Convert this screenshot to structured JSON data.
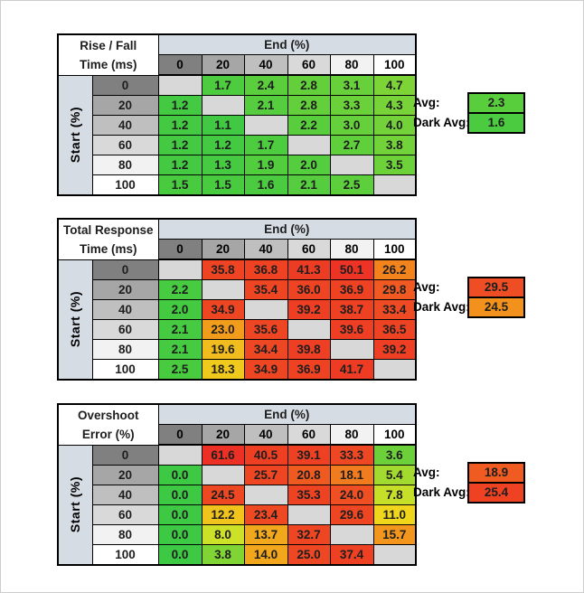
{
  "labels": {
    "end_header": "End (%)",
    "start_header": "Start (%)",
    "avg": "Avg:",
    "dark_avg": "Dark Avg:"
  },
  "palette": {
    "header_blue": "#D6DCE4",
    "blank_cell": "#D8D8D8",
    "header_gray_scale": [
      "#808080",
      "#A6A6A6",
      "#BFBFBF",
      "#D9D9D9",
      "#F2F2F2",
      "#FFFFFF"
    ]
  },
  "chart_data": [
    {
      "type": "heatmap",
      "title_line1": "Rise / Fall",
      "title_line2": "Time (ms)",
      "x_header": "End (%)",
      "y_header": "Start (%)",
      "x": [
        0,
        20,
        40,
        60,
        80,
        100
      ],
      "y": [
        0,
        20,
        40,
        60,
        80,
        100
      ],
      "values": [
        [
          null,
          1.7,
          2.4,
          2.8,
          3.1,
          4.7
        ],
        [
          1.2,
          null,
          2.1,
          2.8,
          3.3,
          4.3
        ],
        [
          1.2,
          1.1,
          null,
          2.2,
          3.0,
          4.0
        ],
        [
          1.2,
          1.2,
          1.7,
          null,
          2.7,
          3.8
        ],
        [
          1.2,
          1.3,
          1.9,
          2.0,
          null,
          3.5
        ],
        [
          1.5,
          1.5,
          1.6,
          2.1,
          2.5,
          null
        ]
      ],
      "display": [
        [
          "",
          "1.7",
          "2.4",
          "2.8",
          "3.1",
          "4.7"
        ],
        [
          "1.2",
          "",
          "2.1",
          "2.8",
          "3.3",
          "4.3"
        ],
        [
          "1.2",
          "1.1",
          "",
          "2.2",
          "3.0",
          "4.0"
        ],
        [
          "1.2",
          "1.2",
          "1.7",
          "",
          "2.7",
          "3.8"
        ],
        [
          "1.2",
          "1.3",
          "1.9",
          "2.0",
          "",
          "3.5"
        ],
        [
          "1.5",
          "1.5",
          "1.6",
          "2.1",
          "2.5",
          ""
        ]
      ],
      "cell_colors": [
        [
          "",
          "#4ECC3F",
          "#5BCE3D",
          "#62CF3B",
          "#67D03B",
          "#7CD437"
        ],
        [
          "#43CA42",
          "",
          "#56CD3E",
          "#62CF3B",
          "#6AD13A",
          "#77D338"
        ],
        [
          "#43CA42",
          "#41C943",
          "",
          "#58CE3D",
          "#65D03B",
          "#73D239"
        ],
        [
          "#43CA42",
          "#43CA42",
          "#4ECC3F",
          "",
          "#60CF3C",
          "#71D239"
        ],
        [
          "#43CA42",
          "#45CA41",
          "#52CD3E",
          "#54CD3E",
          "",
          "#6DD13A"
        ],
        [
          "#49CB40",
          "#49CB40",
          "#4BCB40",
          "#56CD3E",
          "#5DCF3C",
          ""
        ]
      ],
      "avg": {
        "value": "2.3",
        "color": "#59CE3D"
      },
      "dark_avg": {
        "value": "1.6",
        "color": "#4BCB40"
      }
    },
    {
      "type": "heatmap",
      "title_line1": "Total Response",
      "title_line2": "Time (ms)",
      "x_header": "End (%)",
      "y_header": "Start (%)",
      "x": [
        0,
        20,
        40,
        60,
        80,
        100
      ],
      "y": [
        0,
        20,
        40,
        60,
        80,
        100
      ],
      "values": [
        [
          null,
          35.8,
          36.8,
          41.3,
          50.1,
          26.2
        ],
        [
          2.2,
          null,
          35.4,
          36.0,
          36.9,
          29.8
        ],
        [
          2.0,
          34.9,
          null,
          39.2,
          38.7,
          33.4
        ],
        [
          2.1,
          23.0,
          35.6,
          null,
          39.6,
          36.5
        ],
        [
          2.1,
          19.6,
          34.4,
          39.8,
          null,
          39.2
        ],
        [
          2.5,
          18.3,
          34.9,
          36.9,
          41.7,
          null
        ]
      ],
      "display": [
        [
          "",
          "35.8",
          "36.8",
          "41.3",
          "50.1",
          "26.2"
        ],
        [
          "2.2",
          "",
          "35.4",
          "36.0",
          "36.9",
          "29.8"
        ],
        [
          "2.0",
          "34.9",
          "",
          "39.2",
          "38.7",
          "33.4"
        ],
        [
          "2.1",
          "23.0",
          "35.6",
          "",
          "39.6",
          "36.5"
        ],
        [
          "2.1",
          "19.6",
          "34.4",
          "39.8",
          "",
          "39.2"
        ],
        [
          "2.5",
          "18.3",
          "34.9",
          "36.9",
          "41.7",
          ""
        ]
      ],
      "cell_colors": [
        [
          "",
          "#EE4423",
          "#EE4223",
          "#ED3C24",
          "#EC3325",
          "#F2831D"
        ],
        [
          "#46CB41",
          "",
          "#EE4523",
          "#EE4423",
          "#EE4223",
          "#F05A22"
        ],
        [
          "#44CA41",
          "#EE4623",
          "",
          "#EE3F24",
          "#EE4023",
          "#EE4A23"
        ],
        [
          "#45CA41",
          "#F29C1B",
          "#EE4523",
          "",
          "#EE3F24",
          "#EE4323"
        ],
        [
          "#45CA41",
          "#F1BC1D",
          "#EE4723",
          "#EE3E24",
          "",
          "#EE3F24"
        ],
        [
          "#49CB40",
          "#F0C91D",
          "#EE4623",
          "#EE4223",
          "#ED3B24",
          ""
        ]
      ],
      "avg": {
        "value": "29.5",
        "color": "#EF4E24"
      },
      "dark_avg": {
        "value": "24.5",
        "color": "#F2911C"
      }
    },
    {
      "type": "heatmap",
      "title_line1": "Overshoot",
      "title_line2": "Error (%)",
      "x_header": "End (%)",
      "y_header": "Start (%)",
      "x": [
        0,
        20,
        40,
        60,
        80,
        100
      ],
      "y": [
        0,
        20,
        40,
        60,
        80,
        100
      ],
      "values": [
        [
          null,
          61.6,
          40.5,
          39.1,
          33.3,
          3.6
        ],
        [
          0.0,
          null,
          25.7,
          20.8,
          18.1,
          5.4
        ],
        [
          0.0,
          24.5,
          null,
          35.3,
          24.0,
          7.8
        ],
        [
          0.0,
          12.2,
          23.4,
          null,
          29.6,
          11.0
        ],
        [
          0.0,
          8.0,
          13.7,
          32.7,
          null,
          15.7
        ],
        [
          0.0,
          3.8,
          14.0,
          25.0,
          37.4,
          null
        ]
      ],
      "display": [
        [
          "",
          "61.6",
          "40.5",
          "39.1",
          "33.3",
          "3.6"
        ],
        [
          "0.0",
          "",
          "25.7",
          "20.8",
          "18.1",
          "5.4"
        ],
        [
          "0.0",
          "24.5",
          "",
          "35.3",
          "24.0",
          "7.8"
        ],
        [
          "0.0",
          "12.2",
          "23.4",
          "",
          "29.6",
          "11.0"
        ],
        [
          "0.0",
          "8.0",
          "13.7",
          "32.7",
          "",
          "15.7"
        ],
        [
          "0.0",
          "3.8",
          "14.0",
          "25.0",
          "37.4",
          ""
        ]
      ],
      "cell_colors": [
        [
          "",
          "#EC3025",
          "#EE3F23",
          "#EE4023",
          "#EE4723",
          "#6CD03A"
        ],
        [
          "#3DC943",
          "",
          "#EE4623",
          "#EF5A21",
          "#F17B1F",
          "#A3DA2F"
        ],
        [
          "#3DC943",
          "#EE4823",
          "",
          "#EE4323",
          "#EF4F22",
          "#C6E02A"
        ],
        [
          "#3DC943",
          "#F0C41D",
          "#EE4923",
          "",
          "#EE4523",
          "#F0D51D"
        ],
        [
          "#3DC943",
          "#CCE128",
          "#F2A81C",
          "#EE4623",
          "",
          "#F2961D"
        ],
        [
          "#3DC943",
          "#80D535",
          "#F2A61C",
          "#EE4723",
          "#EE4123",
          ""
        ]
      ],
      "avg": {
        "value": "18.9",
        "color": "#F05B22"
      },
      "dark_avg": {
        "value": "25.4",
        "color": "#EE4223"
      }
    }
  ],
  "layout_tops": [
    36,
    240,
    445
  ]
}
